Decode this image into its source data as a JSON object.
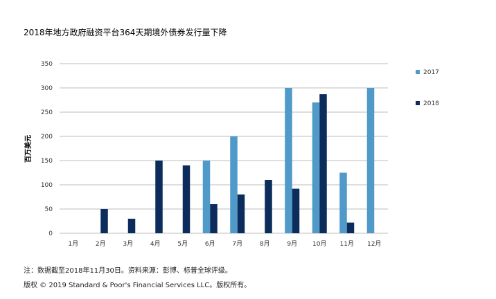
{
  "title": "2018年地方政府融资平台364天期境外债券发行量下降",
  "footer": {
    "note": "注：数据截至2018年11月30日。资料来源：彭博、标普全球评级。",
    "copyright": "版权 © 2019 Standard & Poor's Financial Services LLC。版权所有。"
  },
  "colors": {
    "s2017": "#4f9ac8",
    "s2018": "#0c2d5c",
    "axis": "#bdbdbd"
  },
  "chart_data": {
    "type": "bar",
    "categories": [
      "1月",
      "2月",
      "3月",
      "4月",
      "5月",
      "6月",
      "7月",
      "8月",
      "9月",
      "10月",
      "11月",
      "12月"
    ],
    "series": [
      {
        "name": "2017",
        "values": [
          0,
          0,
          0,
          0,
          0,
          150,
          200,
          0,
          300,
          270,
          125,
          300
        ]
      },
      {
        "name": "2018",
        "values": [
          0,
          50,
          30,
          150,
          140,
          60,
          80,
          110,
          92,
          287,
          22,
          0
        ]
      }
    ],
    "ylabel": "百万美元",
    "ylim": [
      0,
      350
    ],
    "yticks": [
      0,
      50,
      100,
      150,
      200,
      250,
      300,
      350
    ],
    "grid": true,
    "legend": "right"
  }
}
